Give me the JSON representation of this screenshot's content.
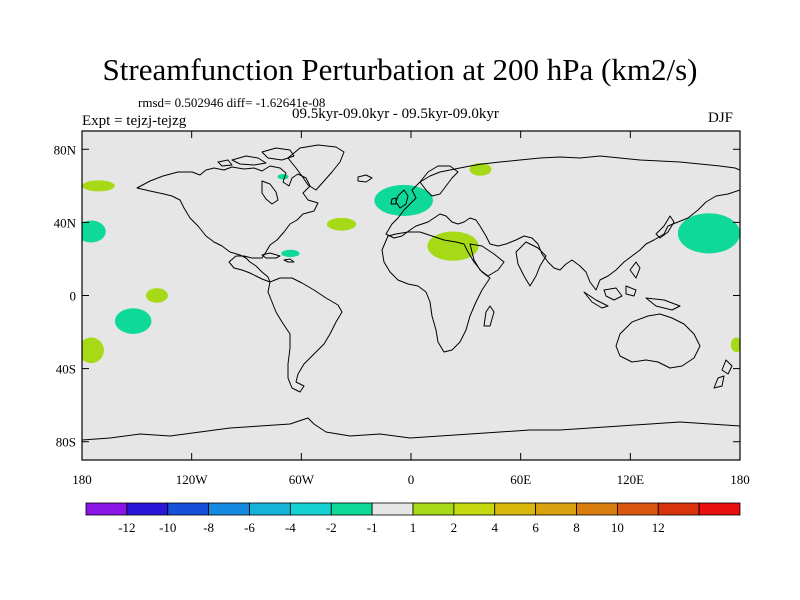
{
  "title": "Streamfunction Perturbation at 200 hPa (km2/s)",
  "stats_line": "rmsd= 0.502946 diff= -1.62641e-08",
  "experiment_label": "Expt = tejzj-tejzg",
  "case_label": "09.5kyr-09.0kyr - 09.5kyr-09.0kyr",
  "season": "DJF",
  "map": {
    "projection": "cylindrical-equidistant",
    "lon_range": [
      -180,
      180
    ],
    "lat_range": [
      -90,
      90
    ],
    "background_color": "#e6e6e6",
    "lat_ticks": [
      {
        "value": 80,
        "label": "80N"
      },
      {
        "value": 40,
        "label": "40N"
      },
      {
        "value": 0,
        "label": "0"
      },
      {
        "value": -40,
        "label": "40S"
      },
      {
        "value": -80,
        "label": "80S"
      }
    ],
    "lon_ticks": [
      {
        "value": -180,
        "label": "180"
      },
      {
        "value": -120,
        "label": "120W"
      },
      {
        "value": -60,
        "label": "60W"
      },
      {
        "value": 0,
        "label": "0"
      },
      {
        "value": 60,
        "label": "60E"
      },
      {
        "value": 120,
        "label": "120E"
      },
      {
        "value": 180,
        "label": "180"
      }
    ],
    "anomaly_regions": [
      {
        "name": "n-pacific-east-positive",
        "lon": -171,
        "lat": 60,
        "rlon": 9,
        "rlat": 3,
        "level": "1 to 2",
        "color": "#a6d916"
      },
      {
        "name": "n-pacific-east-negative",
        "lon": -175,
        "lat": 35,
        "rlon": 8,
        "rlat": 6,
        "level": "-2 to -1",
        "color": "#0ed999"
      },
      {
        "name": "greenland-negative",
        "lon": -70,
        "lat": 65,
        "rlon": 3,
        "rlat": 1.5,
        "level": "-2 to -1",
        "color": "#0ed999"
      },
      {
        "name": "n-atlantic-positive",
        "lon": -38,
        "lat": 39,
        "rlon": 8,
        "rlat": 3.5,
        "level": "1 to 2",
        "color": "#a6d916"
      },
      {
        "name": "caribbean-negative",
        "lon": -66,
        "lat": 23,
        "rlon": 5,
        "rlat": 2,
        "level": "-2 to -1",
        "color": "#0ed999"
      },
      {
        "name": "europe-negative",
        "lon": -4,
        "lat": 52,
        "rlon": 16,
        "rlat": 8.5,
        "level": "-2 to -1",
        "color": "#0ed999"
      },
      {
        "name": "arctic-positive",
        "lon": 38,
        "lat": 69,
        "rlon": 6,
        "rlat": 3.5,
        "level": "1 to 2",
        "color": "#a6d916"
      },
      {
        "name": "n-africa-positive",
        "lon": 23,
        "lat": 27,
        "rlon": 14,
        "rlat": 8,
        "level": "1 to 2",
        "color": "#a6d916"
      },
      {
        "name": "nw-pacific-negative",
        "lon": 163,
        "lat": 34,
        "rlon": 17,
        "rlat": 11,
        "level": "-2 to -1",
        "color": "#0ed999"
      },
      {
        "name": "tropical-pacific-positive",
        "lon": -139,
        "lat": 0,
        "rlon": 6,
        "rlat": 4,
        "level": "1 to 2",
        "color": "#a6d916"
      },
      {
        "name": "south-pacific-negative",
        "lon": -152,
        "lat": -14,
        "rlon": 10,
        "rlat": 7,
        "level": "-2 to -1",
        "color": "#0ed999"
      },
      {
        "name": "s-pacific-west-positive",
        "lon": -175,
        "lat": -30,
        "rlon": 7,
        "rlat": 7,
        "level": "1 to 2",
        "color": "#a6d916"
      },
      {
        "name": "s-pacific-dateline-positive",
        "lon": 178,
        "lat": -27,
        "rlon": 3,
        "rlat": 4,
        "level": "1 to 2",
        "color": "#a6d916"
      }
    ]
  },
  "colorbar": {
    "colors": [
      "#8a16e6",
      "#2a16d9",
      "#1650d9",
      "#1689e0",
      "#16b3d9",
      "#16d1d1",
      "#0ed999",
      "#e6e6e6",
      "#a6d916",
      "#c5d90e",
      "#d9b80e",
      "#d9a10e",
      "#d97e0e",
      "#d9580e",
      "#d9330e",
      "#e60e0e"
    ],
    "tick_labels": [
      "-12",
      "-10",
      "-8",
      "-6",
      "-4",
      "-2",
      "-1",
      "1",
      "2",
      "4",
      "6",
      "8",
      "10",
      "12"
    ]
  }
}
